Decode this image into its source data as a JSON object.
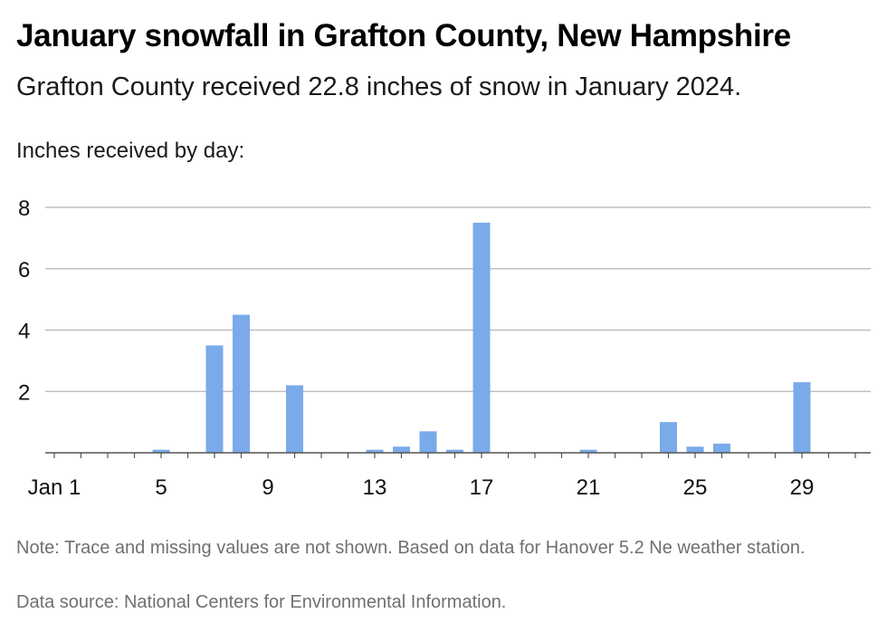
{
  "title": "January snowfall in Grafton County, New Hampshire",
  "subtitle": "Grafton County received 22.8 inches of snow in January 2024.",
  "note": "Note: Trace and missing values are not shown. Based on data for Hanover 5.2 Ne weather station.",
  "source": "Data source: National Centers for Environmental Information.",
  "colors": {
    "bar": "#7aaaea",
    "grid": "#b5b5b5",
    "axis": "#555555"
  },
  "chart_data": {
    "type": "bar",
    "title": "January snowfall in Grafton County, New Hampshire",
    "subtitle": "Grafton County received 22.8 inches of snow in January 2024.",
    "ylabel": "Inches received by day:",
    "xlabel": "",
    "ylim": [
      0,
      8
    ],
    "yticks": [
      2,
      4,
      6,
      8
    ],
    "grid": true,
    "xticks": [
      {
        "day": 1,
        "label": "Jan 1"
      },
      {
        "day": 5,
        "label": "5"
      },
      {
        "day": 9,
        "label": "9"
      },
      {
        "day": 13,
        "label": "13"
      },
      {
        "day": 17,
        "label": "17"
      },
      {
        "day": 21,
        "label": "21"
      },
      {
        "day": 25,
        "label": "25"
      },
      {
        "day": 29,
        "label": "29"
      }
    ],
    "days": [
      5,
      7,
      8,
      10,
      13,
      14,
      15,
      16,
      17,
      21,
      24,
      25,
      26,
      29
    ],
    "values": [
      0.1,
      3.5,
      4.5,
      2.2,
      0.1,
      0.2,
      0.7,
      0.1,
      7.5,
      0.1,
      1.0,
      0.2,
      0.3,
      2.3
    ]
  }
}
